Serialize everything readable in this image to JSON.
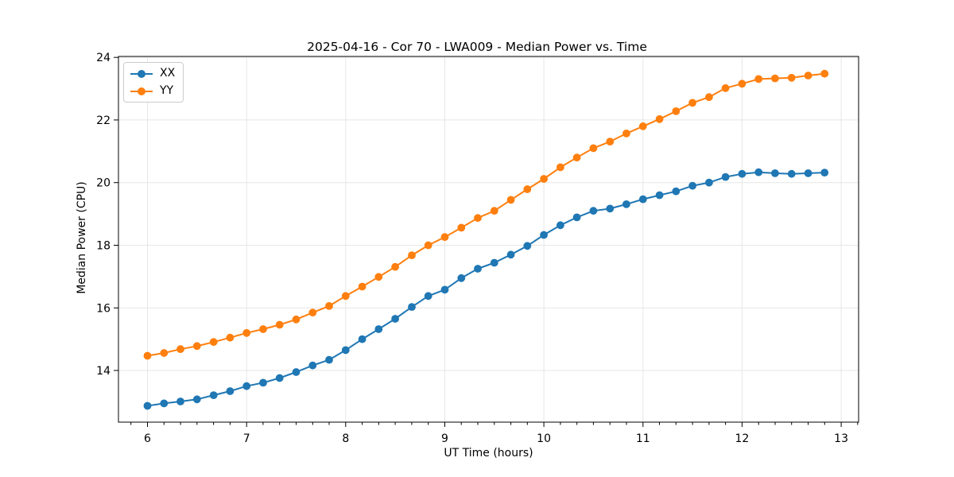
{
  "chart_data": {
    "type": "line",
    "title": "2025-04-16 - Cor 70 - LWA009 - Median Power vs. Time",
    "xlabel": "UT Time (hours)",
    "ylabel": "Median Power (CPU)",
    "grid": true,
    "legend_position": "upper left",
    "marker": "o",
    "xlim": [
      5.707,
      13.176
    ],
    "ylim": [
      12.35,
      24.03
    ],
    "xticks": [
      6,
      7,
      8,
      9,
      10,
      11,
      12,
      13
    ],
    "yticks": [
      14,
      16,
      18,
      20,
      22,
      24
    ],
    "x_minor_tick_step": 0.1667,
    "x": [
      6.0,
      6.167,
      6.333,
      6.5,
      6.667,
      6.833,
      7.0,
      7.167,
      7.333,
      7.5,
      7.667,
      7.833,
      8.0,
      8.167,
      8.333,
      8.5,
      8.667,
      8.833,
      9.0,
      9.167,
      9.333,
      9.5,
      9.667,
      9.833,
      10.0,
      10.167,
      10.333,
      10.5,
      10.667,
      10.833,
      11.0,
      11.167,
      11.333,
      11.5,
      11.667,
      11.833,
      12.0,
      12.167,
      12.333,
      12.5,
      12.667,
      12.833
    ],
    "series": [
      {
        "name": "XX",
        "color": "#1f77b4",
        "values": [
          12.87,
          12.95,
          13.01,
          13.08,
          13.21,
          13.34,
          13.5,
          13.61,
          13.76,
          13.95,
          14.16,
          14.34,
          14.65,
          15.0,
          15.32,
          15.65,
          16.03,
          16.38,
          16.58,
          16.95,
          17.25,
          17.44,
          17.7,
          17.98,
          18.33,
          18.64,
          18.89,
          19.1,
          19.17,
          19.31,
          19.47,
          19.6,
          19.72,
          19.9,
          20.0,
          20.18,
          20.28,
          20.33,
          20.3,
          20.28,
          20.3,
          20.32
        ]
      },
      {
        "name": "YY",
        "color": "#ff7f0e",
        "values": [
          14.47,
          14.56,
          14.68,
          14.78,
          14.91,
          15.05,
          15.2,
          15.32,
          15.46,
          15.63,
          15.85,
          16.06,
          16.38,
          16.68,
          16.99,
          17.31,
          17.68,
          18.0,
          18.26,
          18.56,
          18.87,
          19.1,
          19.45,
          19.79,
          20.12,
          20.49,
          20.8,
          21.1,
          21.31,
          21.57,
          21.8,
          22.03,
          22.28,
          22.55,
          22.73,
          23.02,
          23.16,
          23.31,
          23.33,
          23.35,
          23.42,
          23.48
        ]
      }
    ]
  },
  "style": {
    "grid_color": "#e6e6e6",
    "spine_color": "#000000",
    "background": "#ffffff"
  }
}
